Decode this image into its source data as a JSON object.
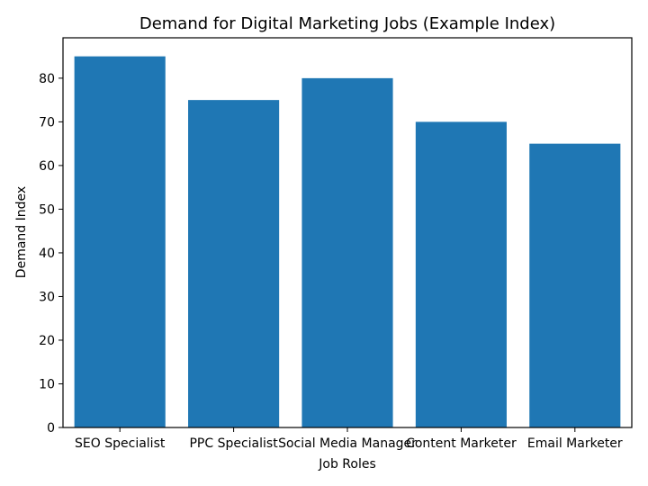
{
  "chart_data": {
    "type": "bar",
    "title": "Demand for Digital Marketing Jobs (Example Index)",
    "xlabel": "Job Roles",
    "ylabel": "Demand Index",
    "categories": [
      "SEO Specialist",
      "PPC Specialist",
      "Social Media Manager",
      "Content Marketer",
      "Email Marketer"
    ],
    "values": [
      85,
      75,
      80,
      70,
      65
    ],
    "ylim": [
      0,
      89.25
    ],
    "yticks": [
      0,
      10,
      20,
      30,
      40,
      50,
      60,
      70,
      80
    ],
    "bar_color": "#1f77b4",
    "grid": false
  }
}
